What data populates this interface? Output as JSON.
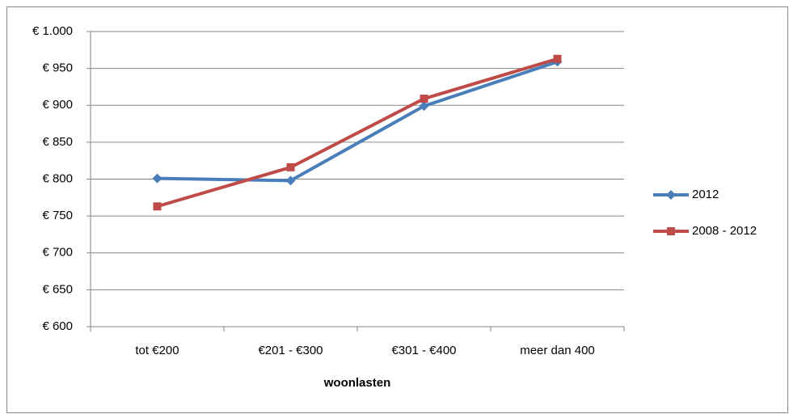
{
  "chart_data": {
    "type": "line",
    "x_label": "woonlasten",
    "categories": [
      "tot €200",
      "€201 - €300",
      "€301 - €400",
      "meer dan 400"
    ],
    "series": [
      {
        "name": "2012",
        "color": "#4a7ebb",
        "marker": "diamond",
        "values": [
          801,
          798,
          899,
          959
        ]
      },
      {
        "name": "2008 - 2012",
        "color": "#be4b48",
        "marker": "square",
        "values": [
          763,
          816,
          909,
          963
        ]
      }
    ],
    "ylim": [
      600,
      1000
    ],
    "yticks": [
      {
        "value": 600,
        "label": "€ 600"
      },
      {
        "value": 650,
        "label": "€ 650"
      },
      {
        "value": 700,
        "label": "€ 700"
      },
      {
        "value": 750,
        "label": "€ 750"
      },
      {
        "value": 800,
        "label": "€ 800"
      },
      {
        "value": 850,
        "label": "€ 850"
      },
      {
        "value": 900,
        "label": "€ 900"
      },
      {
        "value": 950,
        "label": "€ 950"
      },
      {
        "value": 1000,
        "label": "€ 1.000"
      }
    ],
    "grid": true,
    "legend": "right"
  }
}
